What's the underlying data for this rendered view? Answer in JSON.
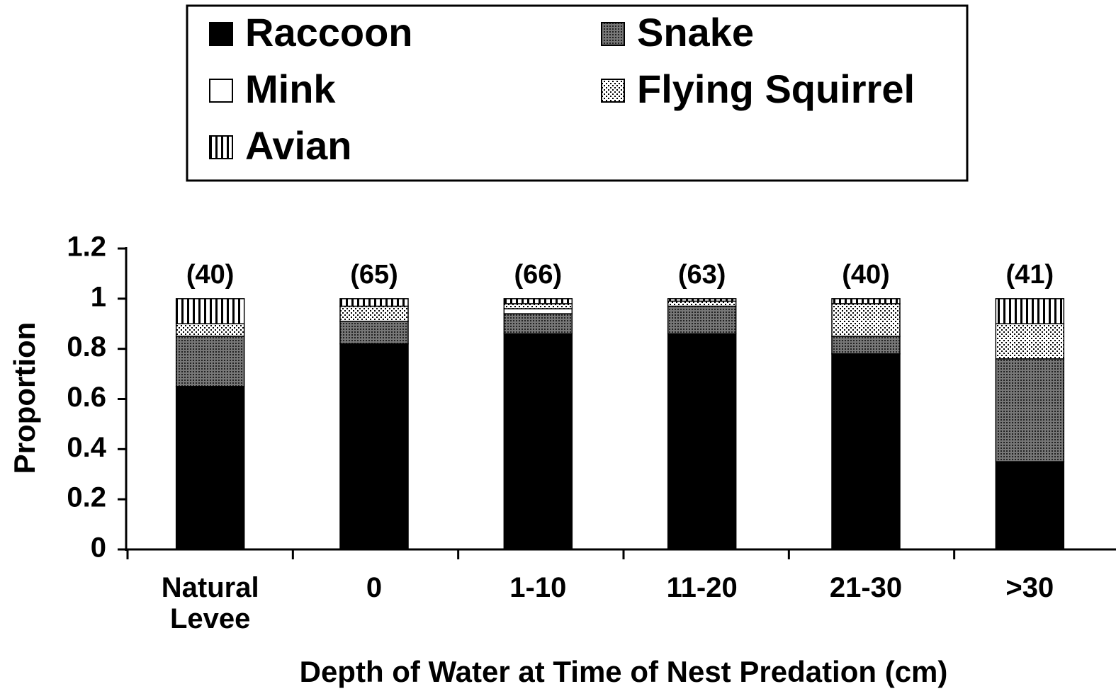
{
  "chart_data": {
    "type": "stacked_bar",
    "x_label": "Depth of Water at Time of Nest Predation (cm)",
    "y_label": "Proportion",
    "categories": [
      "Natural Levee",
      "0",
      "1-10",
      "11-20",
      "21-30",
      ">30"
    ],
    "annotations": [
      "(40)",
      "(65)",
      "(66)",
      "(63)",
      "(40)",
      "(41)"
    ],
    "series": [
      {
        "name": "Raccoon",
        "color": "#000000",
        "pattern": "solid",
        "values": [
          0.65,
          0.82,
          0.86,
          0.86,
          0.78,
          0.35
        ]
      },
      {
        "name": "Snake",
        "color": "#555555",
        "pattern": "dense-dots",
        "values": [
          0.2,
          0.09,
          0.08,
          0.11,
          0.07,
          0.41
        ]
      },
      {
        "name": "Mink",
        "color": "#ffffff",
        "pattern": "none",
        "values": [
          0,
          0,
          0.02,
          0,
          0,
          0
        ]
      },
      {
        "name": "Flying Squirrel",
        "color": "#ffffff",
        "pattern": "sparse-dots",
        "values": [
          0.05,
          0.06,
          0.02,
          0.02,
          0.13,
          0.14
        ]
      },
      {
        "name": "Avian",
        "color": "#ffffff",
        "pattern": "vertical-lines",
        "values": [
          0.1,
          0.03,
          0.02,
          0.01,
          0.02,
          0.1
        ]
      }
    ],
    "ylim": [
      0,
      1.2
    ],
    "yticks": [
      0,
      0.2,
      0.4,
      0.6,
      0.8,
      1,
      1.2
    ],
    "grid": false,
    "legend": "top"
  }
}
